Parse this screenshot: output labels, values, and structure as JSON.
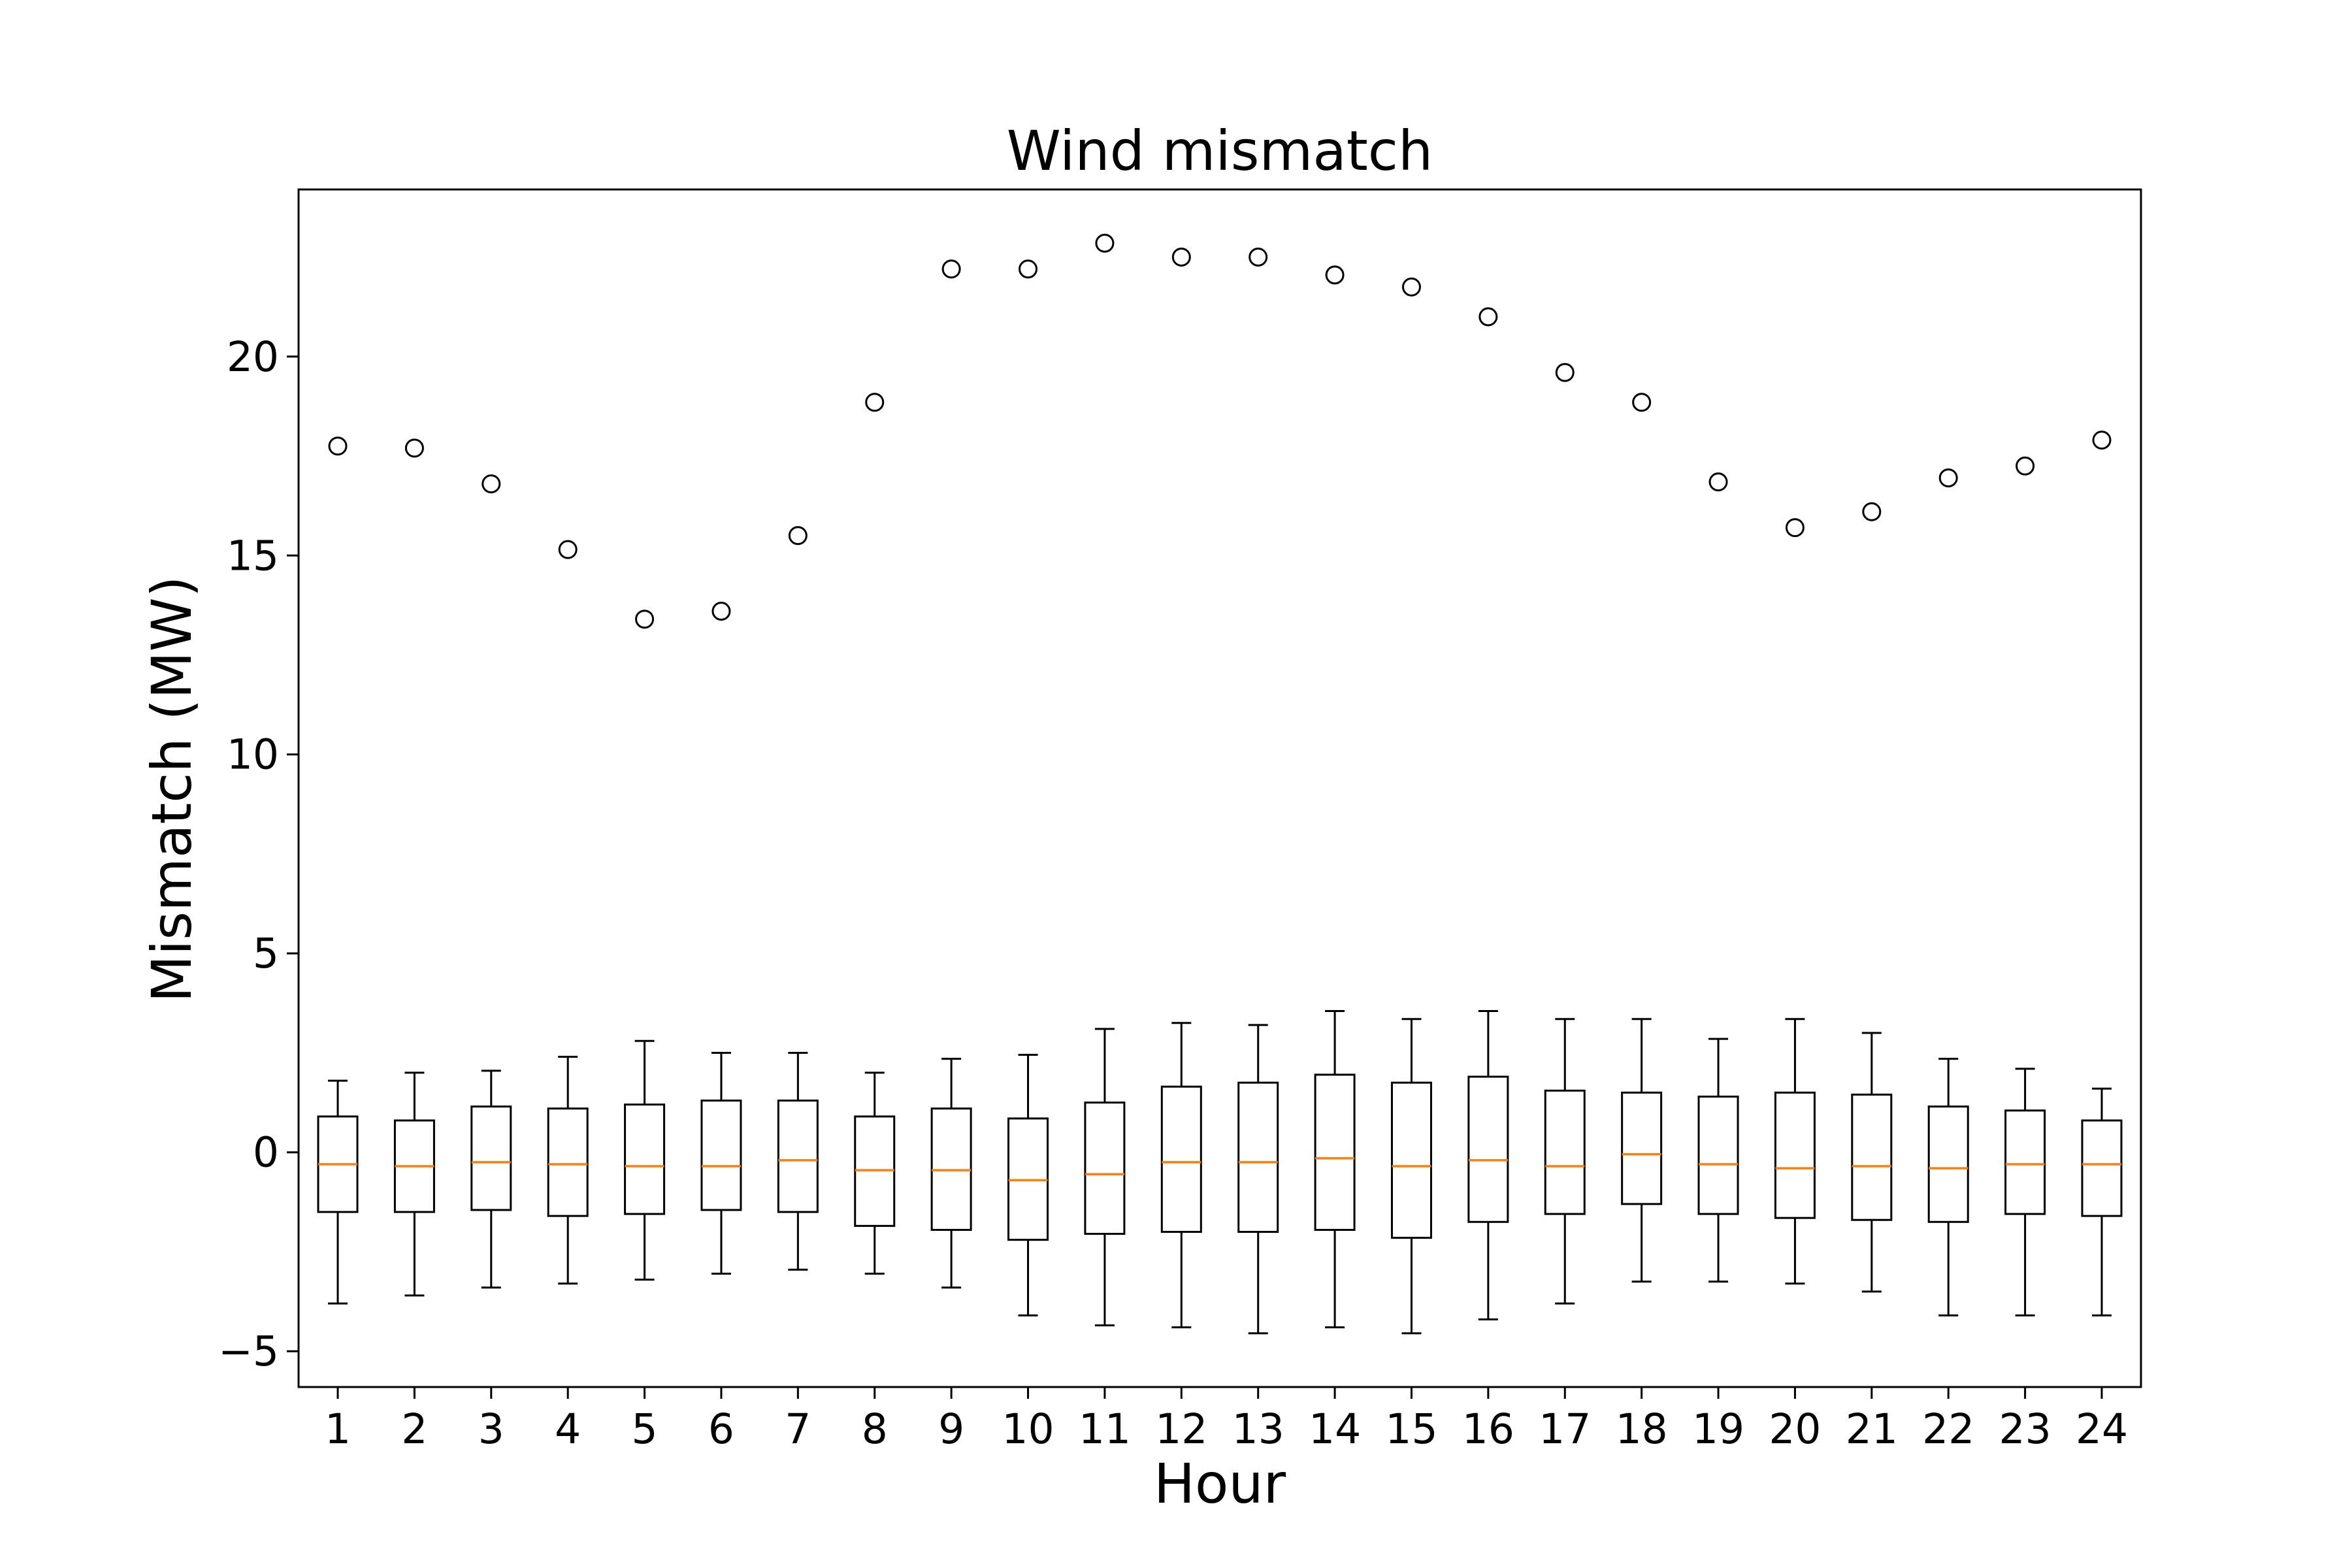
{
  "chart_data": {
    "type": "boxplot",
    "title": "Wind mismatch",
    "xlabel": "Hour",
    "ylabel": "Mismatch (MW)",
    "categories": [
      "1",
      "2",
      "3",
      "4",
      "5",
      "6",
      "7",
      "8",
      "9",
      "10",
      "11",
      "12",
      "13",
      "14",
      "15",
      "16",
      "17",
      "18",
      "19",
      "20",
      "21",
      "22",
      "23",
      "24"
    ],
    "ylim": [
      -5.9,
      24.2
    ],
    "yticks": [
      -5,
      0,
      5,
      10,
      15,
      20
    ],
    "ytick_labels": [
      "−5",
      "0",
      "5",
      "10",
      "15",
      "20"
    ],
    "grid": false,
    "colors": {
      "median": "#ff7f0e",
      "box": "#000000",
      "outlier": "#000000"
    },
    "boxes": [
      {
        "x": "1",
        "whislo": -3.8,
        "q1": -1.5,
        "med": -0.3,
        "q3": 0.9,
        "whishi": 1.8,
        "fliers": [
          17.75
        ]
      },
      {
        "x": "2",
        "whislo": -3.6,
        "q1": -1.5,
        "med": -0.35,
        "q3": 0.8,
        "whishi": 2.0,
        "fliers": [
          17.7
        ]
      },
      {
        "x": "3",
        "whislo": -3.4,
        "q1": -1.45,
        "med": -0.25,
        "q3": 1.15,
        "whishi": 2.05,
        "fliers": [
          16.8
        ]
      },
      {
        "x": "4",
        "whislo": -3.3,
        "q1": -1.6,
        "med": -0.3,
        "q3": 1.1,
        "whishi": 2.4,
        "fliers": [
          15.15
        ]
      },
      {
        "x": "5",
        "whislo": -3.2,
        "q1": -1.55,
        "med": -0.35,
        "q3": 1.2,
        "whishi": 2.8,
        "fliers": [
          13.4
        ]
      },
      {
        "x": "6",
        "whislo": -3.05,
        "q1": -1.45,
        "med": -0.35,
        "q3": 1.3,
        "whishi": 2.5,
        "fliers": [
          13.6
        ]
      },
      {
        "x": "7",
        "whislo": -2.95,
        "q1": -1.5,
        "med": -0.2,
        "q3": 1.3,
        "whishi": 2.5,
        "fliers": [
          15.5
        ]
      },
      {
        "x": "8",
        "whislo": -3.05,
        "q1": -1.85,
        "med": -0.45,
        "q3": 0.9,
        "whishi": 2.0,
        "fliers": [
          18.85
        ]
      },
      {
        "x": "9",
        "whislo": -3.4,
        "q1": -1.95,
        "med": -0.45,
        "q3": 1.1,
        "whishi": 2.35,
        "fliers": [
          22.2
        ]
      },
      {
        "x": "10",
        "whislo": -4.1,
        "q1": -2.2,
        "med": -0.7,
        "q3": 0.85,
        "whishi": 2.45,
        "fliers": [
          22.2
        ]
      },
      {
        "x": "11",
        "whislo": -4.35,
        "q1": -2.05,
        "med": -0.55,
        "q3": 1.25,
        "whishi": 3.1,
        "fliers": [
          22.85
        ]
      },
      {
        "x": "12",
        "whislo": -4.4,
        "q1": -2.0,
        "med": -0.25,
        "q3": 1.65,
        "whishi": 3.25,
        "fliers": [
          22.5
        ]
      },
      {
        "x": "13",
        "whislo": -4.55,
        "q1": -2.0,
        "med": -0.25,
        "q3": 1.75,
        "whishi": 3.2,
        "fliers": [
          22.5
        ]
      },
      {
        "x": "14",
        "whislo": -4.4,
        "q1": -1.95,
        "med": -0.15,
        "q3": 1.95,
        "whishi": 3.55,
        "fliers": [
          22.05
        ]
      },
      {
        "x": "15",
        "whislo": -4.55,
        "q1": -2.15,
        "med": -0.35,
        "q3": 1.75,
        "whishi": 3.35,
        "fliers": [
          21.75
        ]
      },
      {
        "x": "16",
        "whislo": -4.2,
        "q1": -1.75,
        "med": -0.2,
        "q3": 1.9,
        "whishi": 3.55,
        "fliers": [
          21.0
        ]
      },
      {
        "x": "17",
        "whislo": -3.8,
        "q1": -1.55,
        "med": -0.35,
        "q3": 1.55,
        "whishi": 3.35,
        "fliers": [
          19.6
        ]
      },
      {
        "x": "18",
        "whislo": -3.25,
        "q1": -1.3,
        "med": -0.05,
        "q3": 1.5,
        "whishi": 3.35,
        "fliers": [
          18.85
        ]
      },
      {
        "x": "19",
        "whislo": -3.25,
        "q1": -1.55,
        "med": -0.3,
        "q3": 1.4,
        "whishi": 2.85,
        "fliers": [
          16.85
        ]
      },
      {
        "x": "20",
        "whislo": -3.3,
        "q1": -1.65,
        "med": -0.4,
        "q3": 1.5,
        "whishi": 3.35,
        "fliers": [
          15.7
        ]
      },
      {
        "x": "21",
        "whislo": -3.5,
        "q1": -1.7,
        "med": -0.35,
        "q3": 1.45,
        "whishi": 3.0,
        "fliers": [
          16.1
        ]
      },
      {
        "x": "22",
        "whislo": -4.1,
        "q1": -1.75,
        "med": -0.4,
        "q3": 1.15,
        "whishi": 2.35,
        "fliers": [
          16.95
        ]
      },
      {
        "x": "23",
        "whislo": -4.1,
        "q1": -1.55,
        "med": -0.3,
        "q3": 1.05,
        "whishi": 2.1,
        "fliers": [
          17.25
        ]
      },
      {
        "x": "24",
        "whislo": -4.1,
        "q1": -1.6,
        "med": -0.3,
        "q3": 0.8,
        "whishi": 1.6,
        "fliers": [
          17.9
        ]
      }
    ]
  }
}
